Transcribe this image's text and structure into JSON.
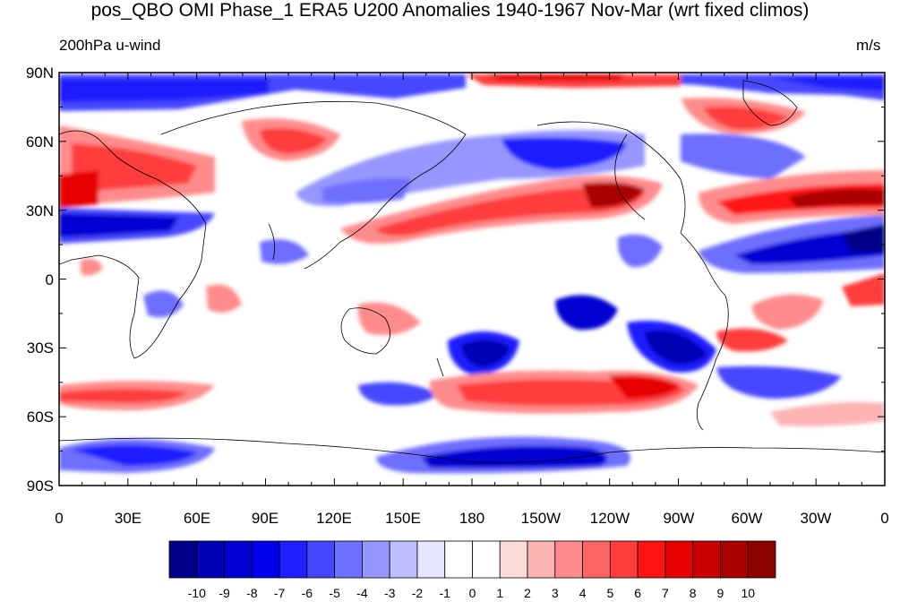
{
  "title": "pos_QBO OMI Phase_1 ERA5 U200 Anomalies 1940-1967 Nov-Mar (wrt fixed climos)",
  "left_label": "200hPa u-wind",
  "right_label": "m/s",
  "lat_ticks": [
    "90N",
    "60N",
    "30N",
    "0",
    "30S",
    "60S",
    "90S"
  ],
  "lon_ticks": [
    "0",
    "30E",
    "60E",
    "90E",
    "120E",
    "150E",
    "180",
    "150W",
    "120W",
    "90W",
    "60W",
    "30W",
    "0"
  ],
  "colorbar": {
    "levels": [
      "-10",
      "-9",
      "-8",
      "-7",
      "-6",
      "-5",
      "-4",
      "-3",
      "-2",
      "-1",
      "0",
      "1",
      "2",
      "3",
      "4",
      "5",
      "6",
      "7",
      "8",
      "9",
      "10"
    ],
    "colors": [
      "#00008b",
      "#0000b4",
      "#0000d2",
      "#0000ee",
      "#1e1eff",
      "#4646ff",
      "#6e6eff",
      "#9696ff",
      "#bebeff",
      "#e6e6ff",
      "#ffffff",
      "#ffffff",
      "#ffdcdc",
      "#ffb4b4",
      "#ff8c8c",
      "#ff6464",
      "#ff3c3c",
      "#ff1414",
      "#e60000",
      "#c80000",
      "#aa0000",
      "#8b0000"
    ]
  }
}
